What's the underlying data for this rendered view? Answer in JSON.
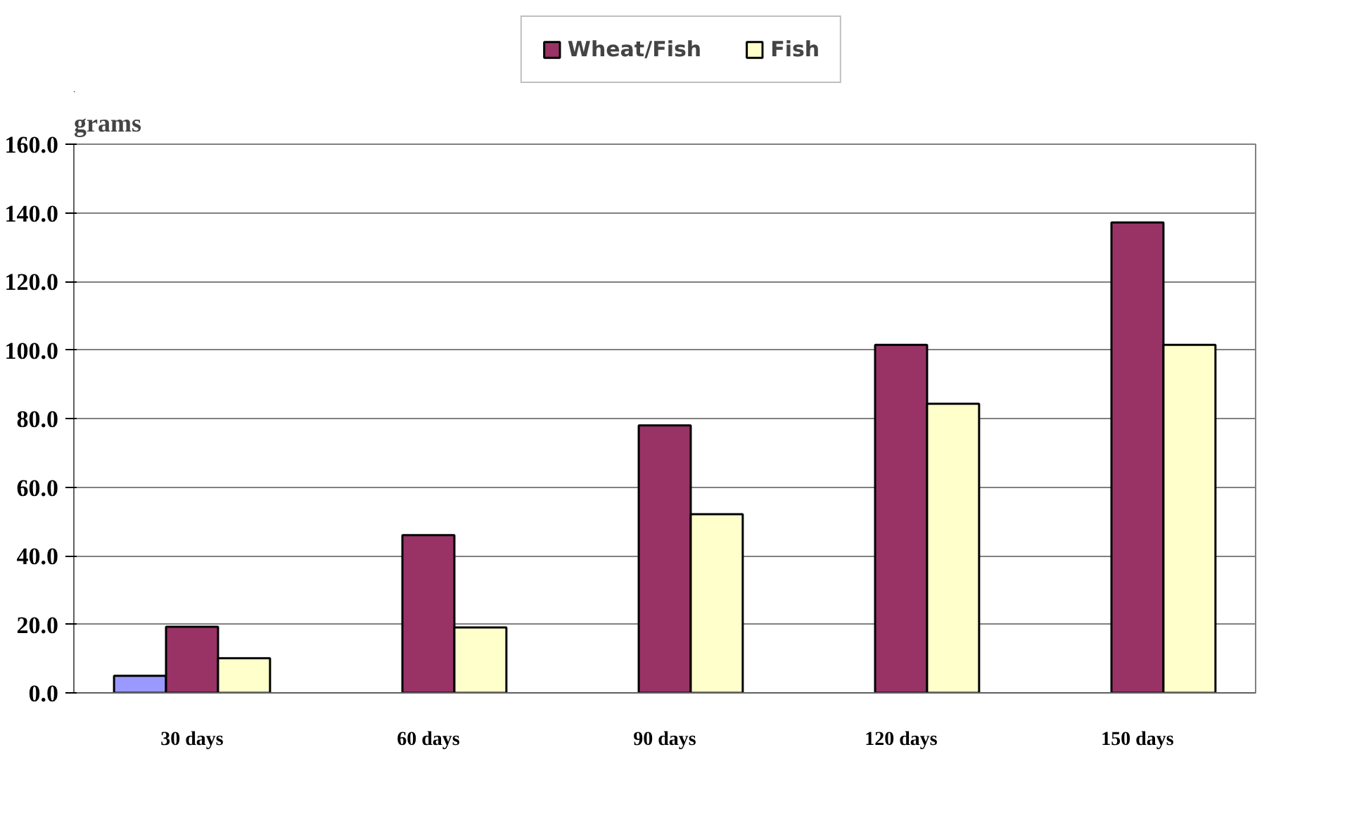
{
  "chart_data": {
    "type": "bar",
    "ylabel": "grams",
    "categories": [
      "30 days",
      "60 days",
      "90 days",
      "120 days",
      "150 days"
    ],
    "series": [
      {
        "color": "#9999ff",
        "values": [
          5,
          null,
          null,
          null,
          null
        ]
      },
      {
        "name": "Wheat/Fish",
        "color": "#993366",
        "values": [
          19.3,
          46.0,
          78.0,
          101.5,
          137.2
        ]
      },
      {
        "name": "Fish",
        "color": "#ffffcc",
        "values": [
          10.1,
          19.1,
          52.1,
          84.3,
          101.5
        ]
      }
    ],
    "ylim": [
      0,
      160
    ],
    "yticks": [
      {
        "value": 0,
        "label": "0.0"
      },
      {
        "value": 20,
        "label": "20.0"
      },
      {
        "value": 40,
        "label": "40.0"
      },
      {
        "value": 60,
        "label": "60.0"
      },
      {
        "value": 80,
        "label": "80.0"
      },
      {
        "value": 100,
        "label": "100.0"
      },
      {
        "value": 120,
        "label": "120.0"
      },
      {
        "value": 140,
        "label": "140.0"
      },
      {
        "value": 160,
        "label": "160.0"
      }
    ],
    "grid": "y",
    "legend": "top"
  }
}
